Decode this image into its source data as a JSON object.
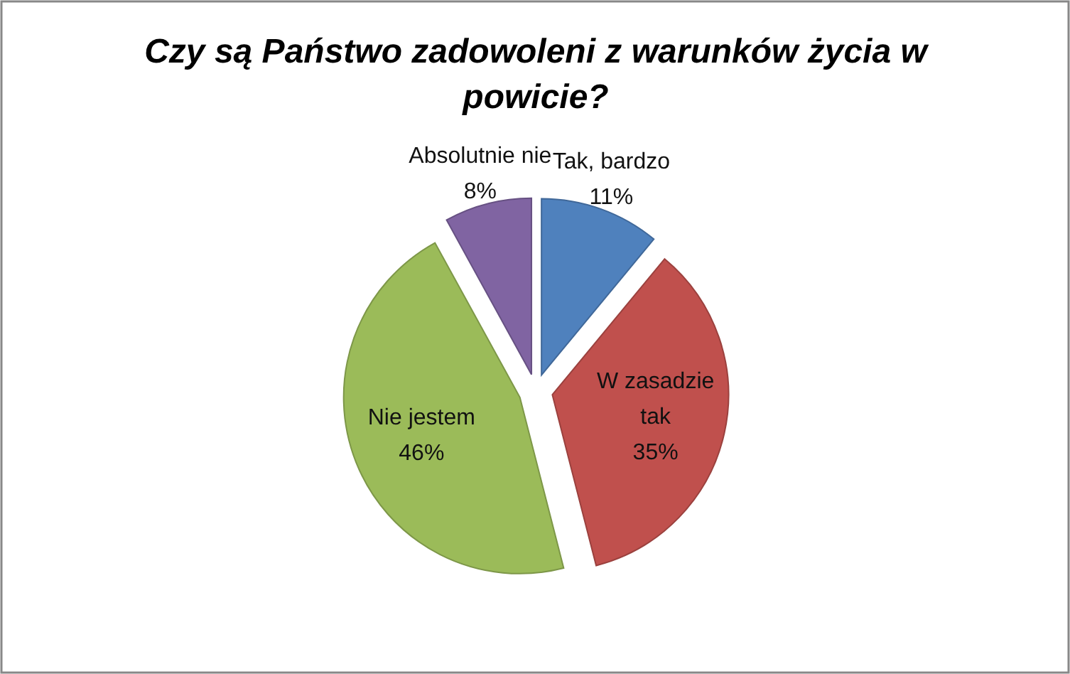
{
  "chart_data": {
    "type": "pie",
    "title": "Czy są Państwo zadowoleni z warunków życia w powicie?",
    "categories": [
      "Tak, bardzo",
      "W zasadzie tak",
      "Nie jestem",
      "Absolutnie nie"
    ],
    "values": [
      11,
      35,
      46,
      8
    ],
    "value_labels": [
      "11%",
      "35%",
      "46%",
      "8%"
    ],
    "colors": [
      "#4f81bd",
      "#c0504d",
      "#9bbb59",
      "#8064a2"
    ]
  }
}
